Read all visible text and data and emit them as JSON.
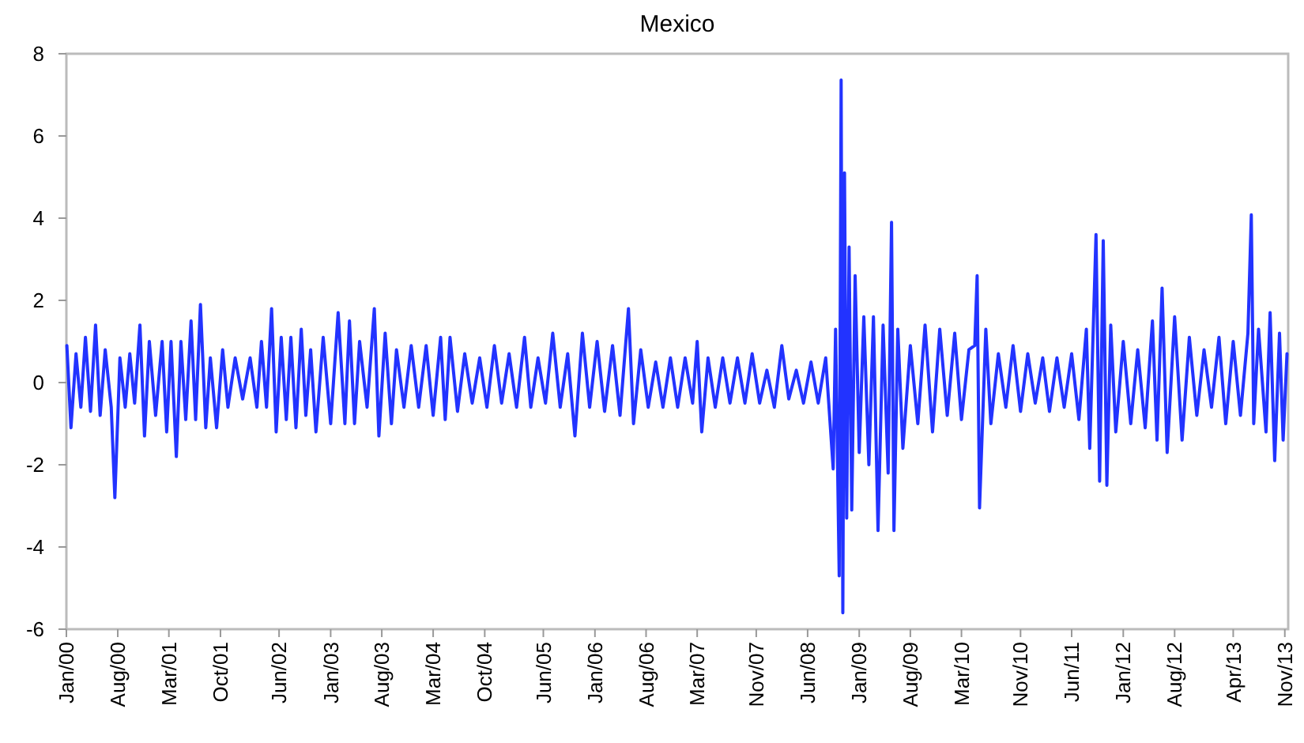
{
  "chart_data": {
    "type": "line",
    "title": "Mexico",
    "x": [
      "2000-01-03",
      "2000-01-20",
      "2000-02-10",
      "2000-03-01",
      "2000-03-20",
      "2000-04-10",
      "2000-05-01",
      "2000-05-20",
      "2000-06-10",
      "2000-07-05",
      "2000-07-20",
      "2000-08-10",
      "2000-09-01",
      "2000-09-20",
      "2000-10-10",
      "2000-11-01",
      "2000-11-20",
      "2000-12-10",
      "2001-01-05",
      "2001-02-01",
      "2001-02-20",
      "2001-03-10",
      "2001-04-01",
      "2001-04-20",
      "2001-05-10",
      "2001-06-01",
      "2001-06-20",
      "2001-07-10",
      "2001-08-01",
      "2001-08-20",
      "2001-09-15",
      "2001-10-10",
      "2001-11-01",
      "2001-12-01",
      "2002-01-01",
      "2002-02-01",
      "2002-03-01",
      "2002-03-20",
      "2002-04-10",
      "2002-05-01",
      "2002-05-20",
      "2002-06-10",
      "2002-07-01",
      "2002-07-20",
      "2002-08-10",
      "2002-09-01",
      "2002-09-20",
      "2002-10-10",
      "2002-11-01",
      "2002-12-01",
      "2003-01-01",
      "2003-02-01",
      "2003-03-01",
      "2003-03-20",
      "2003-04-10",
      "2003-05-01",
      "2003-06-01",
      "2003-07-01",
      "2003-07-20",
      "2003-08-15",
      "2003-09-10",
      "2003-10-01",
      "2003-11-01",
      "2003-12-01",
      "2004-01-01",
      "2004-02-01",
      "2004-03-01",
      "2004-04-01",
      "2004-04-20",
      "2004-05-10",
      "2004-06-10",
      "2004-07-10",
      "2004-08-10",
      "2004-09-10",
      "2004-10-10",
      "2004-11-10",
      "2004-12-10",
      "2005-01-10",
      "2005-02-10",
      "2005-03-15",
      "2005-04-10",
      "2005-05-10",
      "2005-06-10",
      "2005-07-10",
      "2005-08-10",
      "2005-09-10",
      "2005-10-10",
      "2005-11-10",
      "2005-12-10",
      "2006-01-10",
      "2006-02-10",
      "2006-03-15",
      "2006-04-15",
      "2006-05-20",
      "2006-06-10",
      "2006-07-10",
      "2006-08-10",
      "2006-09-10",
      "2006-10-10",
      "2006-11-10",
      "2006-12-10",
      "2007-01-10",
      "2007-02-10",
      "2007-03-01",
      "2007-03-20",
      "2007-04-15",
      "2007-05-15",
      "2007-06-15",
      "2007-07-15",
      "2007-08-15",
      "2007-09-15",
      "2007-10-15",
      "2007-11-15",
      "2007-12-15",
      "2008-01-15",
      "2008-02-15",
      "2008-03-15",
      "2008-04-15",
      "2008-05-15",
      "2008-06-15",
      "2008-07-15",
      "2008-08-15",
      "2008-09-15",
      "2008-09-25",
      "2008-10-10",
      "2008-10-18",
      "2008-10-25",
      "2008-11-01",
      "2008-11-10",
      "2008-11-20",
      "2008-12-01",
      "2008-12-15",
      "2009-01-01",
      "2009-01-20",
      "2009-02-10",
      "2009-03-01",
      "2009-03-20",
      "2009-04-10",
      "2009-05-01",
      "2009-05-15",
      "2009-05-25",
      "2009-06-10",
      "2009-07-01",
      "2009-08-01",
      "2009-09-01",
      "2009-10-01",
      "2009-11-01",
      "2009-12-01",
      "2010-01-01",
      "2010-02-01",
      "2010-03-01",
      "2010-04-01",
      "2010-04-25",
      "2010-05-05",
      "2010-05-15",
      "2010-06-10",
      "2010-07-01",
      "2010-08-01",
      "2010-09-01",
      "2010-10-01",
      "2010-11-01",
      "2010-12-01",
      "2011-01-01",
      "2011-02-01",
      "2011-03-01",
      "2011-04-01",
      "2011-05-01",
      "2011-06-01",
      "2011-07-01",
      "2011-08-01",
      "2011-08-15",
      "2011-09-10",
      "2011-09-25",
      "2011-10-10",
      "2011-10-25",
      "2011-11-10",
      "2011-12-01",
      "2012-01-01",
      "2012-02-01",
      "2012-03-01",
      "2012-04-01",
      "2012-05-01",
      "2012-05-20",
      "2012-06-10",
      "2012-07-01",
      "2012-08-01",
      "2012-09-01",
      "2012-10-01",
      "2012-11-01",
      "2012-12-01",
      "2013-01-01",
      "2013-02-01",
      "2013-03-01",
      "2013-04-01",
      "2013-05-01",
      "2013-06-01",
      "2013-06-15",
      "2013-06-25",
      "2013-07-15",
      "2013-08-15",
      "2013-09-01",
      "2013-09-20",
      "2013-10-10",
      "2013-10-25",
      "2013-11-10"
    ],
    "series": [
      {
        "color": "#2233ff",
        "values": [
          0.9,
          -1.1,
          0.7,
          -0.6,
          1.1,
          -0.7,
          1.4,
          -0.8,
          0.8,
          -0.6,
          -2.8,
          0.6,
          -0.6,
          0.7,
          -0.5,
          1.4,
          -1.3,
          1.0,
          -0.8,
          1.0,
          -1.2,
          1.0,
          -1.8,
          1.0,
          -0.9,
          1.5,
          -0.9,
          1.9,
          -1.1,
          0.6,
          -1.1,
          0.8,
          -0.6,
          0.6,
          -0.4,
          0.6,
          -0.6,
          1.0,
          -0.6,
          1.8,
          -1.2,
          1.1,
          -0.9,
          1.1,
          -1.1,
          1.3,
          -0.8,
          0.8,
          -1.2,
          1.1,
          -1.0,
          1.7,
          -1.0,
          1.5,
          -1.0,
          1.0,
          -0.6,
          1.8,
          -1.3,
          1.2,
          -1.0,
          0.8,
          -0.6,
          0.9,
          -0.6,
          0.9,
          -0.8,
          1.1,
          -0.9,
          1.1,
          -0.7,
          0.7,
          -0.5,
          0.6,
          -0.6,
          0.9,
          -0.5,
          0.7,
          -0.6,
          1.1,
          -0.6,
          0.6,
          -0.5,
          1.2,
          -0.6,
          0.7,
          -1.3,
          1.2,
          -0.6,
          1.0,
          -0.7,
          0.9,
          -0.8,
          1.8,
          -1.0,
          0.8,
          -0.6,
          0.5,
          -0.6,
          0.6,
          -0.6,
          0.6,
          -0.5,
          1.0,
          -1.2,
          0.6,
          -0.6,
          0.6,
          -0.5,
          0.6,
          -0.5,
          0.7,
          -0.5,
          0.3,
          -0.6,
          0.9,
          -0.4,
          0.3,
          -0.5,
          0.5,
          -0.5,
          0.6,
          -2.1,
          1.3,
          -4.7,
          7.36,
          -5.6,
          5.1,
          -3.3,
          3.3,
          -3.1,
          2.6,
          -1.7,
          1.6,
          -2.0,
          1.6,
          -3.6,
          1.4,
          -2.2,
          3.9,
          -3.6,
          1.3,
          -1.6,
          0.9,
          -1.0,
          1.4,
          -1.2,
          1.3,
          -0.8,
          1.2,
          -0.9,
          0.8,
          0.9,
          2.6,
          -3.05,
          1.3,
          -1.0,
          0.7,
          -0.6,
          0.9,
          -0.7,
          0.7,
          -0.5,
          0.6,
          -0.7,
          0.6,
          -0.6,
          0.7,
          -0.9,
          1.3,
          -1.6,
          3.6,
          -2.4,
          3.45,
          -2.5,
          1.4,
          -1.2,
          1.0,
          -1.0,
          0.8,
          -1.1,
          1.5,
          -1.4,
          2.3,
          -1.7,
          1.6,
          -1.4,
          1.1,
          -0.8,
          0.8,
          -0.6,
          1.1,
          -1.0,
          1.0,
          -0.8,
          1.2,
          4.08,
          -1.0,
          1.3,
          -1.2,
          1.7,
          -1.9,
          1.2,
          -1.4,
          0.7
        ]
      }
    ],
    "xlim": [
      "2000-01-01",
      "2013-11-15"
    ],
    "xticks": [
      {
        "value": "2000-01-01",
        "label": "Jan/00"
      },
      {
        "value": "2000-08-01",
        "label": "Aug/00"
      },
      {
        "value": "2001-03-01",
        "label": "Mar/01"
      },
      {
        "value": "2001-10-01",
        "label": "Oct/01"
      },
      {
        "value": "2002-06-01",
        "label": "Jun/02"
      },
      {
        "value": "2003-01-01",
        "label": "Jan/03"
      },
      {
        "value": "2003-08-01",
        "label": "Aug/03"
      },
      {
        "value": "2004-03-01",
        "label": "Mar/04"
      },
      {
        "value": "2004-10-01",
        "label": "Oct/04"
      },
      {
        "value": "2005-06-01",
        "label": "Jun/05"
      },
      {
        "value": "2006-01-01",
        "label": "Jan/06"
      },
      {
        "value": "2006-08-01",
        "label": "Aug/06"
      },
      {
        "value": "2007-03-01",
        "label": "Mar/07"
      },
      {
        "value": "2007-11-01",
        "label": "Nov/07"
      },
      {
        "value": "2008-06-01",
        "label": "Jun/08"
      },
      {
        "value": "2009-01-01",
        "label": "Jan/09"
      },
      {
        "value": "2009-08-01",
        "label": "Aug/09"
      },
      {
        "value": "2010-03-01",
        "label": "Mar/10"
      },
      {
        "value": "2010-11-01",
        "label": "Nov/10"
      },
      {
        "value": "2011-06-01",
        "label": "Jun/11"
      },
      {
        "value": "2012-01-01",
        "label": "Jan/12"
      },
      {
        "value": "2012-08-01",
        "label": "Aug/12"
      },
      {
        "value": "2013-04-01",
        "label": "Apr/13"
      },
      {
        "value": "2013-11-01",
        "label": "Nov/13"
      }
    ],
    "ylim": [
      -6,
      8
    ],
    "yticks": [
      -6,
      -4,
      -2,
      0,
      2,
      4,
      6,
      8
    ],
    "grid": false,
    "line_style": "solid",
    "marker": "none"
  }
}
